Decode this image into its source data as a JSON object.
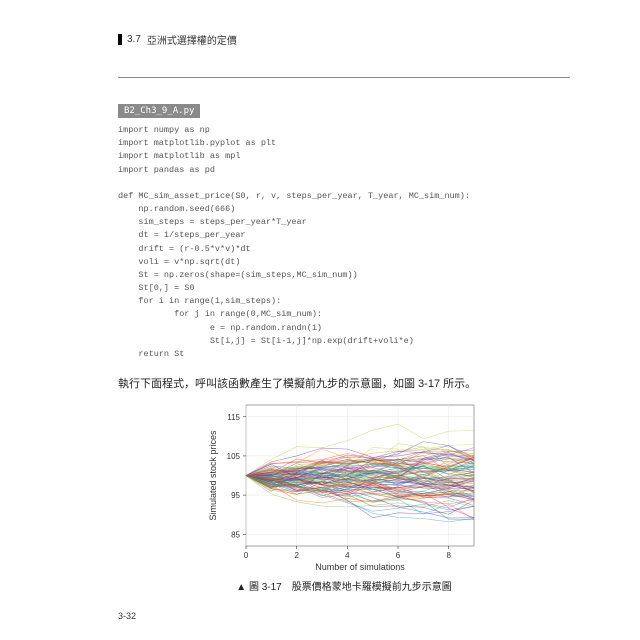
{
  "header": {
    "section": "3.7",
    "title": "亞洲式選擇權的定價"
  },
  "file_tag": "B2_Ch3_9_A.py",
  "code_lines": [
    "import numpy as np",
    "import matplotlib.pyplot as plt",
    "import matplotlib as mpl",
    "import pandas as pd",
    "",
    "def MC_sim_asset_price(S0, r, v, steps_per_year, T_year, MC_sim_num):",
    "    np.random.seed(666)",
    "    sim_steps = steps_per_year*T_year",
    "    dt = 1/steps_per_year",
    "    drift = (r-0.5*v*v)*dt",
    "    voli = v*np.sqrt(dt)",
    "    St = np.zeros(shape=(sim_steps,MC_sim_num))",
    "    St[0,] = S0",
    "    for i in range(1,sim_steps):",
    "           for j in range(0,MC_sim_num):",
    "                  e = np.random.randn(1)",
    "                  St[i,j] = St[i-1,j]*np.exp(drift+voli*e)",
    "    return St"
  ],
  "body_text": "執行下面程式，呼叫該函數產生了模擬前九步的示意圖，如圖 3-17 所示。",
  "chart": {
    "type": "line-spaghetti",
    "xlabel": "Number of simulations",
    "ylabel": "Simulated stock prices",
    "xlim": [
      0,
      9
    ],
    "ylim": [
      82,
      118
    ],
    "xticks": [
      0,
      2,
      4,
      6,
      8
    ],
    "yticks": [
      85,
      95,
      105,
      115
    ],
    "start_value": 100,
    "n_lines": 100,
    "grid_color": "#e5e5e5",
    "background_color": "#ffffff",
    "axis_color": "#333333",
    "tick_fontsize": 8,
    "label_fontsize": 9,
    "palette": [
      "#7cb342",
      "#ef6c00",
      "#5e35b1",
      "#d81b60",
      "#00897b",
      "#3949ab",
      "#c0ca33",
      "#6d4c41",
      "#f4511e",
      "#1e88e5",
      "#8e24aa",
      "#43a047",
      "#fb8c00",
      "#546e7a",
      "#e53935",
      "#00acc1"
    ]
  },
  "caption": "▲ 圖 3-17　股票價格蒙地卡羅模擬前九步示意圖",
  "page_number": "3-32"
}
